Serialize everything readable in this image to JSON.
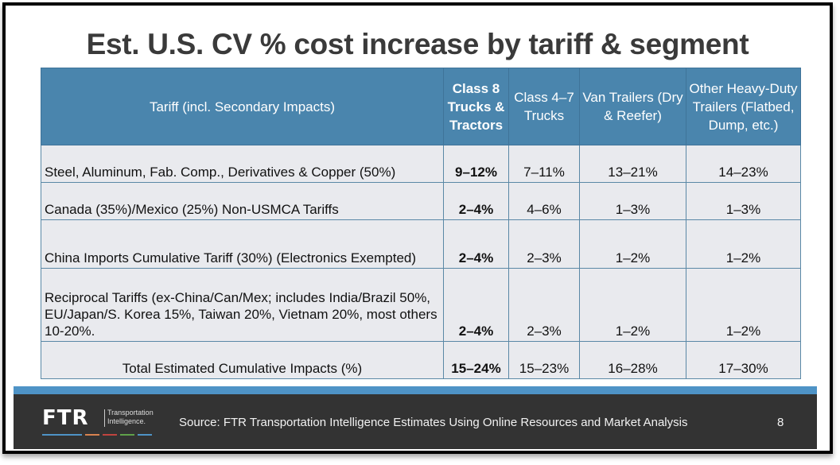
{
  "slide": {
    "title": "Est. U.S. CV % cost increase by tariff & segment",
    "page_number": "8"
  },
  "table": {
    "headers": [
      "Tariff (incl. Secondary Impacts)",
      "Class 8 Trucks & Tractors",
      "Class 4–7 Trucks",
      "Van Trailers (Dry & Reefer)",
      "Other Heavy-Duty Trailers (Flatbed, Dump, etc.)"
    ],
    "rows": [
      {
        "tariff": "Steel, Aluminum, Fab. Comp., Derivatives & Copper (50%)",
        "class8": "9–12%",
        "class47": "7–11%",
        "van": "13–21%",
        "other": "14–23%"
      },
      {
        "tariff": "Canada (35%)/Mexico (25%) Non-USMCA Tariffs",
        "class8": "2–4%",
        "class47": "4–6%",
        "van": "1–3%",
        "other": "1–3%"
      },
      {
        "tariff": "China Imports Cumulative Tariff (30%) (Electronics Exempted)",
        "class8": "2–4%",
        "class47": "2–3%",
        "van": "1–2%",
        "other": "1–2%"
      },
      {
        "tariff": "Reciprocal Tariffs (ex-China/Can/Mex; includes India/Brazil 50%, EU/Japan/S. Korea 15%, Taiwan 20%, Vietnam 20%, most others 10-20%.",
        "class8": "2–4%",
        "class47": "2–3%",
        "van": "1–2%",
        "other": "1–2%"
      },
      {
        "tariff": "Total Estimated Cumulative Impacts (%)",
        "class8": "15–24%",
        "class47": "15–23%",
        "van": "16–28%",
        "other": "17–30%"
      }
    ]
  },
  "footer": {
    "logo_text": "FTR",
    "logo_subtext_1": "Transportation",
    "logo_subtext_2": "Intelligence.",
    "source": "Source: FTR Transportation Intelligence Estimates Using Online Resources and Market Analysis",
    "logo_bar_colors": [
      "#4e93c6",
      "#d9824f",
      "#c0443f",
      "#5fa14a",
      "#4e93c6"
    ]
  },
  "colors": {
    "header_bg": "#4a85ad",
    "cell_bg": "#e9eaee",
    "stripe": "#4e93c6",
    "footer_bg": "#333333"
  }
}
